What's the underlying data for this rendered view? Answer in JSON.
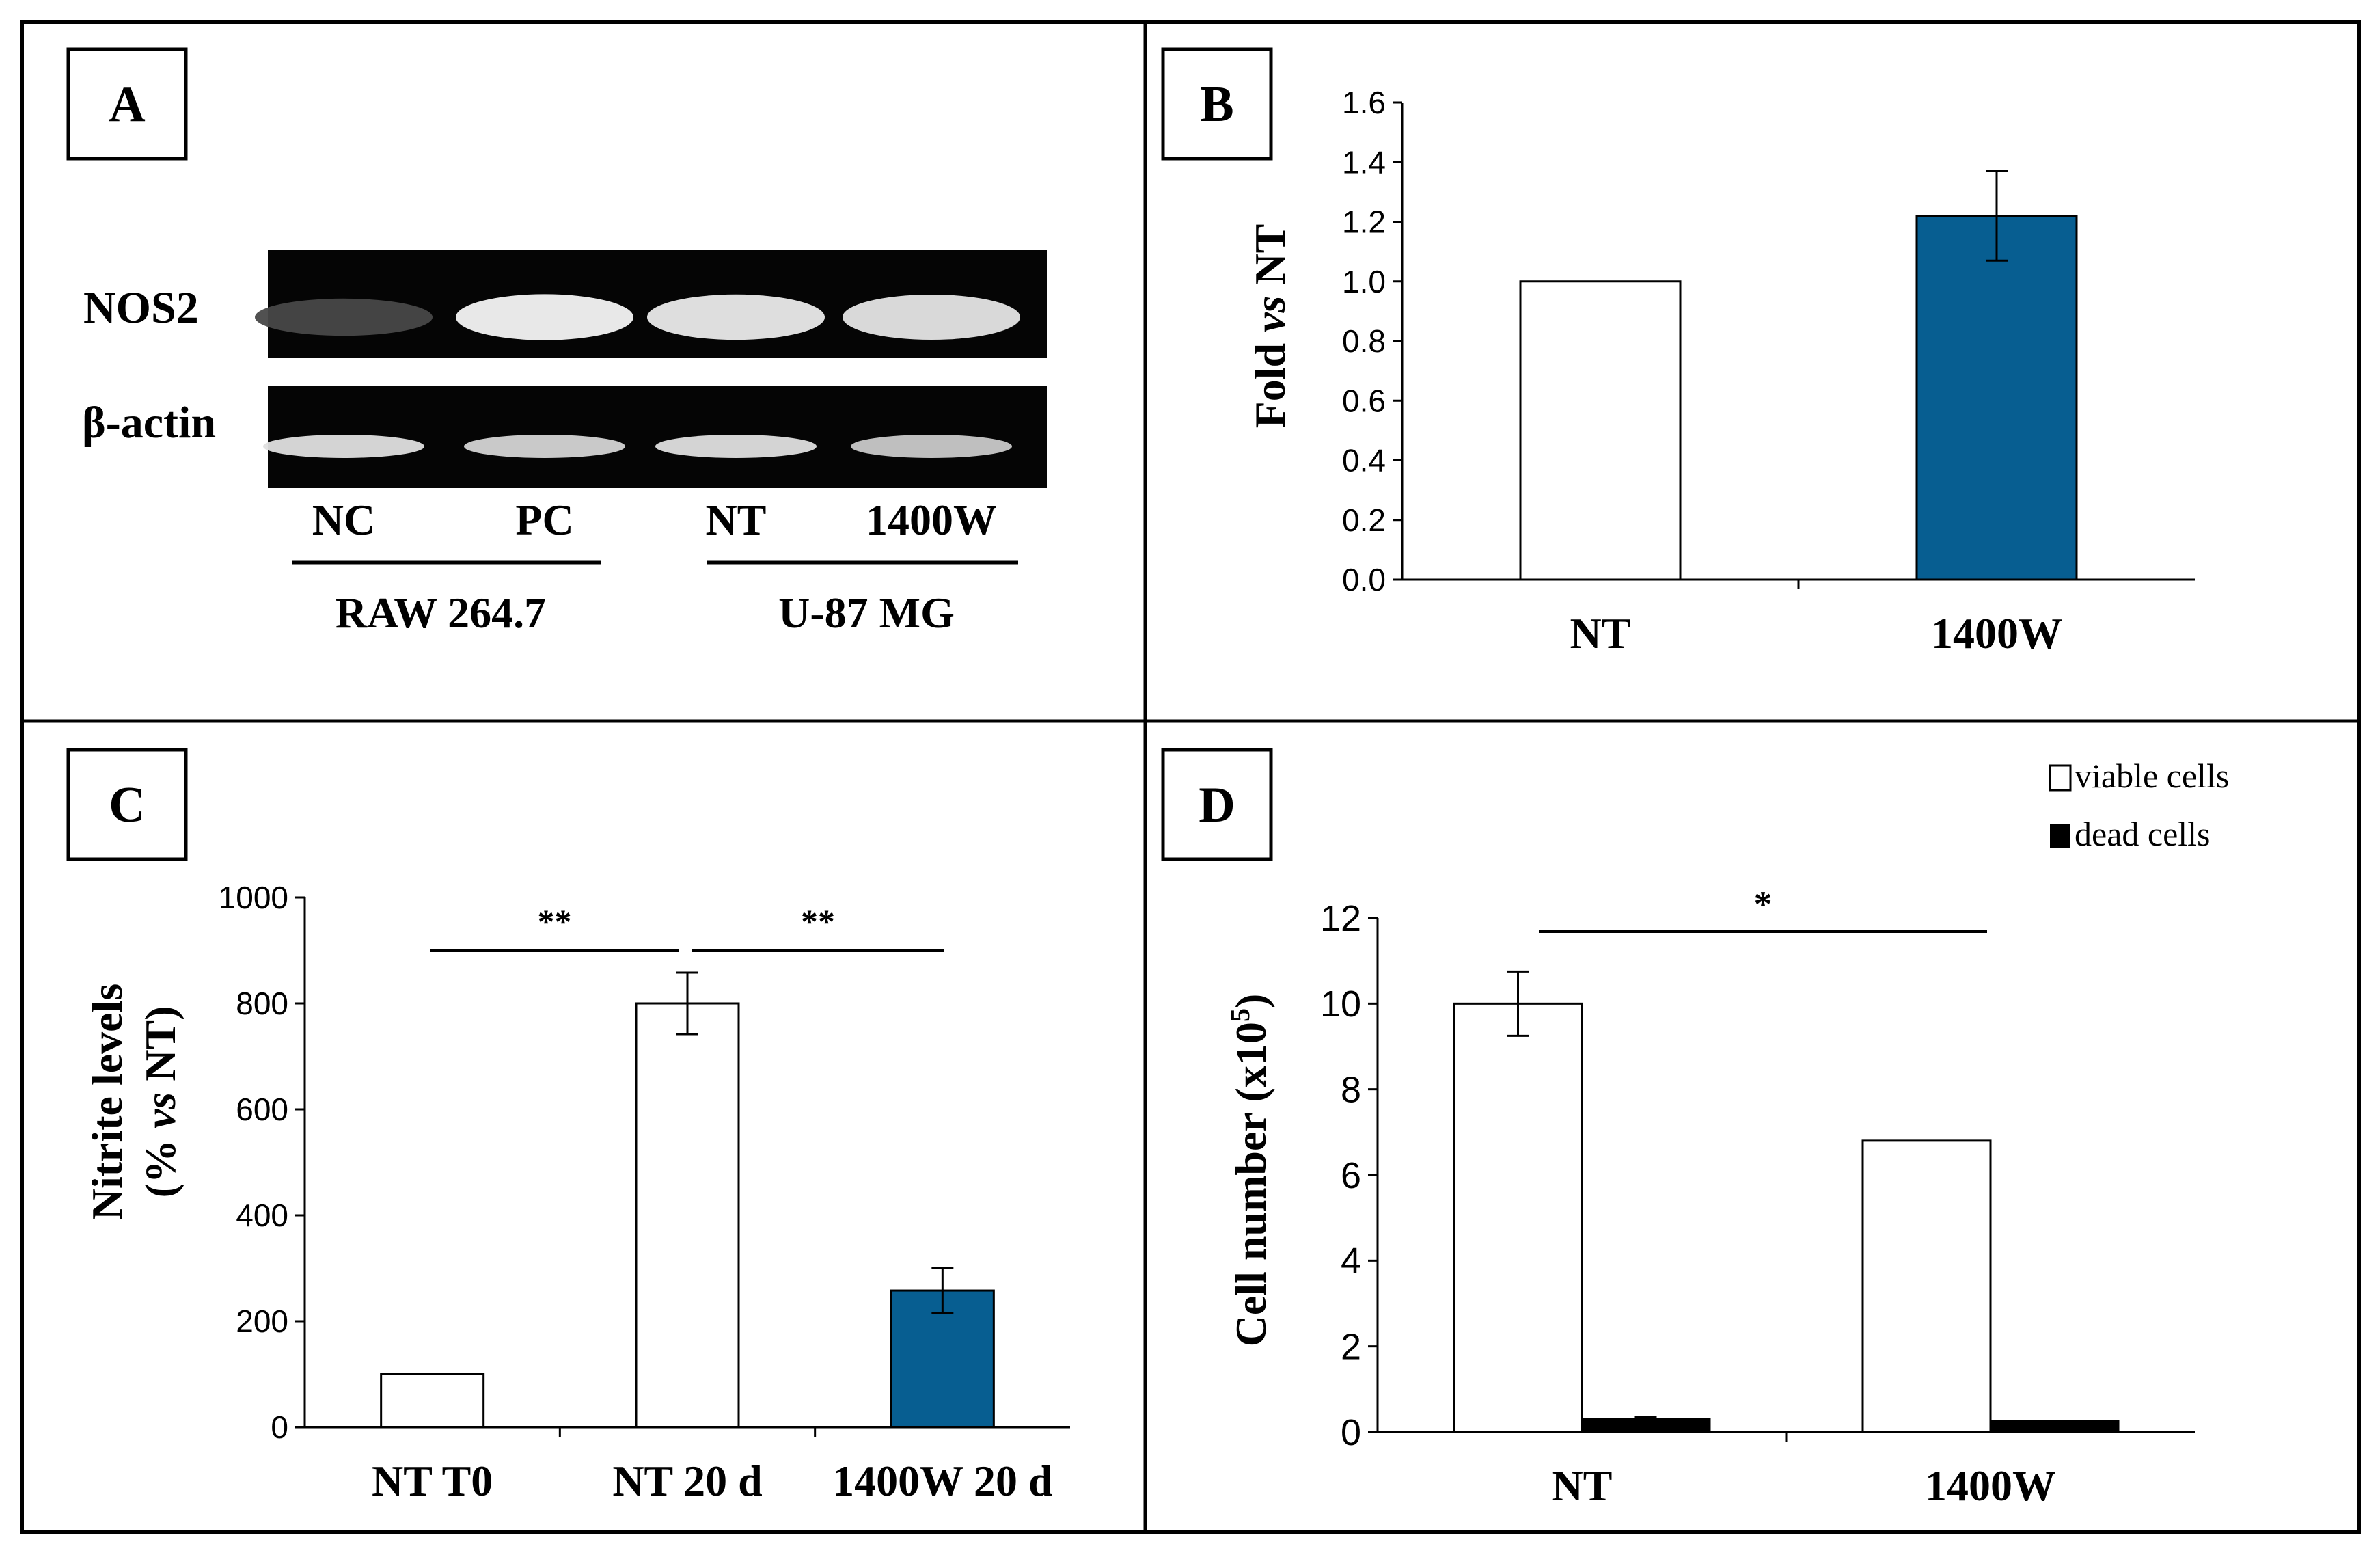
{
  "panels": {
    "A": {
      "label": "A",
      "blot_rows": [
        "NOS2",
        "β-actin"
      ],
      "lanes": [
        "NC",
        "PC",
        "NT",
        "1400W"
      ],
      "groups": [
        "RAW 264.7",
        "U-87 MG"
      ],
      "band_intensity": {
        "NOS2": [
          0.15,
          0.95,
          0.9,
          0.88
        ],
        "beta_actin": [
          0.85,
          0.8,
          0.85,
          0.75
        ]
      }
    },
    "B": {
      "label": "B",
      "ylabel_pre": "Fold ",
      "ylabel_em": "vs",
      "ylabel_post": " NT",
      "ticks": [
        "0.0",
        "0.2",
        "0.4",
        "0.6",
        "0.8",
        "1.0",
        "1.2",
        "1.4",
        "1.6"
      ]
    },
    "C": {
      "label": "C",
      "ylabel_line1": "Nitrite levels",
      "ylabel_line2_pre": "(% ",
      "ylabel_line2_em": "vs",
      "ylabel_line2_post": " NT)",
      "ticks": [
        "0",
        "200",
        "400",
        "600",
        "800",
        "1000"
      ],
      "sig": [
        "**",
        "**"
      ]
    },
    "D": {
      "label": "D",
      "ylabel_main": "Cell number (x10",
      "ylabel_sup": "5",
      "ylabel_close": ")",
      "ticks": [
        "0",
        "2",
        "4",
        "6",
        "8",
        "10",
        "12"
      ],
      "sig": [
        "*"
      ],
      "legend": [
        "viable cells",
        "dead cells"
      ]
    }
  },
  "colors": {
    "blue": "#075E91",
    "white": "#ffffff",
    "black": "#000000"
  },
  "chart_data": [
    {
      "panel": "B",
      "type": "bar",
      "categories": [
        "NT",
        "1400W"
      ],
      "values": [
        1.0,
        1.22
      ],
      "errors": [
        0,
        0.15
      ],
      "bar_colors": [
        "#ffffff",
        "#075E91"
      ],
      "ylabel": "Fold vs NT",
      "ylim": [
        0,
        1.6
      ]
    },
    {
      "panel": "C",
      "type": "bar",
      "categories": [
        "NT T0",
        "NT 20 d",
        "1400W 20 d"
      ],
      "values": [
        100,
        800,
        258
      ],
      "errors": [
        0,
        58,
        42
      ],
      "bar_colors": [
        "#ffffff",
        "#ffffff",
        "#075E91"
      ],
      "ylabel": "Nitrite levels (% vs NT)",
      "ylim": [
        0,
        1000
      ],
      "significance": [
        {
          "from": "NT T0",
          "to": "NT 20 d",
          "label": "**"
        },
        {
          "from": "NT 20 d",
          "to": "1400W 20 d",
          "label": "**"
        }
      ]
    },
    {
      "panel": "D",
      "type": "bar",
      "categories": [
        "NT",
        "1400W"
      ],
      "series": [
        {
          "name": "viable cells",
          "values": [
            10.0,
            6.8
          ],
          "errors": [
            0.75,
            0
          ],
          "color": "#ffffff"
        },
        {
          "name": "dead cells",
          "values": [
            0.3,
            0.25
          ],
          "errors": [
            0.05,
            0
          ],
          "color": "#000000"
        }
      ],
      "ylabel": "Cell number (x10^5)",
      "ylim": [
        0,
        12
      ],
      "legend_position": "top-right",
      "significance": [
        {
          "from": "NT",
          "to": "1400W",
          "label": "*"
        }
      ]
    }
  ]
}
